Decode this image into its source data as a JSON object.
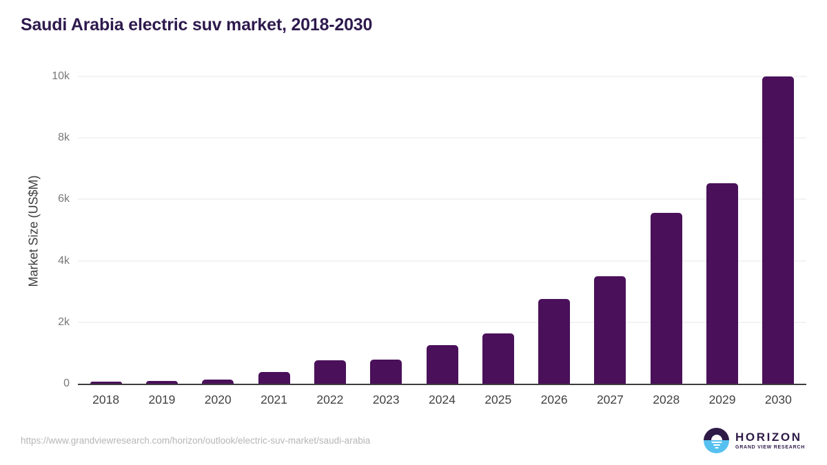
{
  "chart_data": {
    "type": "bar",
    "title": "Saudi Arabia electric suv market, 2018-2030",
    "xlabel": "",
    "ylabel": "Market Size (US$M)",
    "categories": [
      "2018",
      "2019",
      "2020",
      "2021",
      "2022",
      "2023",
      "2024",
      "2025",
      "2026",
      "2027",
      "2028",
      "2029",
      "2030"
    ],
    "values": [
      70,
      100,
      145,
      390,
      755,
      790,
      1255,
      1640,
      2750,
      3500,
      5560,
      6530,
      9990
    ],
    "ylim": [
      0,
      10000
    ],
    "yticks": [
      {
        "value": 0,
        "label": "0"
      },
      {
        "value": 2000,
        "label": "2k"
      },
      {
        "value": 4000,
        "label": "4k"
      },
      {
        "value": 6000,
        "label": "6k"
      },
      {
        "value": 8000,
        "label": "8k"
      },
      {
        "value": 10000,
        "label": "10k"
      }
    ],
    "grid": true,
    "legend": false,
    "bar_color": "#4a105a"
  },
  "footer": {
    "source_url": "https://www.grandviewresearch.com/horizon/outlook/electric-suv-market/saudi-arabia",
    "logo": {
      "brand": "HORIZON",
      "tagline": "GRAND VIEW RESEARCH",
      "icon": "horizon-sunset-circle-icon"
    }
  },
  "colors": {
    "bar": "#4a105a",
    "title_text": "#2e1a4d",
    "axis_line": "#3c3c3c",
    "gridline": "#e7e7e7",
    "y_tick_text": "#77787b",
    "x_tick_text": "#424242",
    "url_text": "#b6b6b6",
    "logo_purple": "#2e1a47",
    "logo_blue": "#56c1f0"
  }
}
